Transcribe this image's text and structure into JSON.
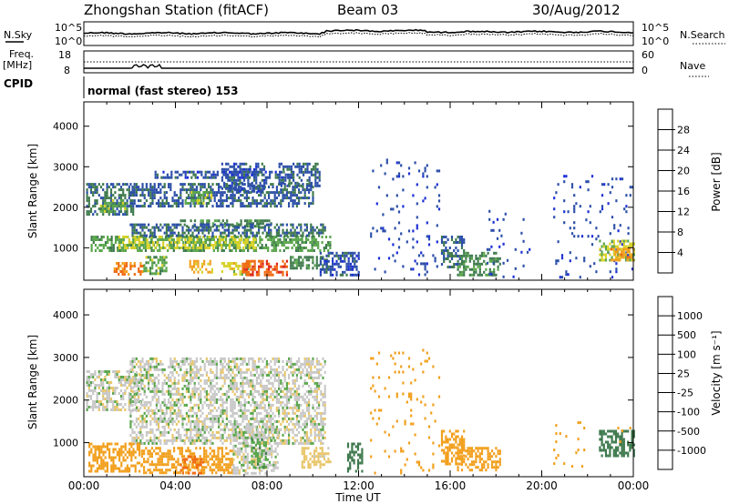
{
  "header": {
    "station": "Zhongshan Station (fitACF)",
    "beam": "Beam 03",
    "date": "30/Aug/2012"
  },
  "top_panels": {
    "nsky_label": "N.Sky",
    "nsky_ticks": [
      "10^5",
      "10^0"
    ],
    "nsearch_label": "N.Search",
    "freq_label_1": "Freq.",
    "freq_label_2": "[MHz]",
    "freq_ticks": [
      "18",
      "8"
    ],
    "nave_ticks": [
      "60",
      "0"
    ],
    "nave_label": "Nave",
    "cpid_label": "CPID",
    "cpid_value": "normal (fast stereo) 153"
  },
  "colors": {
    "power_scale": [
      "#1d2fd6",
      "#2c4fa8",
      "#3f7a4e",
      "#5aa64c",
      "#d8d22a",
      "#f2a01e",
      "#f06a12",
      "#e0241a"
    ],
    "velocity_scale": [
      "#e0241a",
      "#f06a12",
      "#f2a01e",
      "#e8c66a",
      "#c8c8c8",
      "#5aa64c",
      "#3f7a4e",
      "#2c4fa8",
      "#1d2fd6"
    ]
  },
  "chart_data": [
    {
      "type": "heatmap",
      "name": "power-panel",
      "x_axis": "time",
      "xlim": [
        0,
        24
      ],
      "xticks": [
        "00:00",
        "04:00",
        "08:00",
        "12:00",
        "16:00",
        "20:00",
        "00:00"
      ],
      "ylabel": "Slant Range [km]",
      "ylim": [
        200,
        4600
      ],
      "yticks": [
        1000,
        2000,
        3000,
        4000
      ],
      "colorbar_label": "Power [dB]",
      "colorbar_ticks": [
        4,
        8,
        12,
        16,
        20,
        24,
        28
      ],
      "bands": [
        {
          "t0": 0.1,
          "t1": 2.2,
          "r0": 1800,
          "r1": 2600,
          "v": 9
        },
        {
          "t0": 0.7,
          "t1": 1.9,
          "r0": 1900,
          "r1": 2200,
          "v": 15
        },
        {
          "t0": 0.3,
          "t1": 10.8,
          "r0": 900,
          "r1": 1300,
          "v": 13
        },
        {
          "t0": 1.5,
          "t1": 7.5,
          "r0": 1000,
          "r1": 1300,
          "v": 17
        },
        {
          "t0": 4.2,
          "t1": 8.2,
          "r0": 1500,
          "r1": 1700,
          "v": 11
        },
        {
          "t0": 2.0,
          "t1": 10.5,
          "r0": 1300,
          "r1": 1600,
          "v": 8
        },
        {
          "t0": 2.0,
          "t1": 10.0,
          "r0": 2000,
          "r1": 2600,
          "v": 7
        },
        {
          "t0": 3.0,
          "t1": 9.0,
          "r0": 2700,
          "r1": 2900,
          "v": 6
        },
        {
          "t0": 4.4,
          "t1": 5.6,
          "r0": 2100,
          "r1": 2400,
          "v": 14
        },
        {
          "t0": 6.0,
          "t1": 8.0,
          "r0": 2400,
          "r1": 3100,
          "v": 6
        },
        {
          "t0": 8.5,
          "t1": 10.3,
          "r0": 2500,
          "r1": 3100,
          "v": 7
        },
        {
          "t0": 1.3,
          "t1": 2.6,
          "r0": 380,
          "r1": 650,
          "v": 25
        },
        {
          "t0": 2.6,
          "t1": 3.6,
          "r0": 350,
          "r1": 800,
          "v": 14
        },
        {
          "t0": 4.6,
          "t1": 5.6,
          "r0": 380,
          "r1": 700,
          "v": 21
        },
        {
          "t0": 6.0,
          "t1": 7.4,
          "r0": 350,
          "r1": 650,
          "v": 18
        },
        {
          "t0": 6.9,
          "t1": 8.9,
          "r0": 330,
          "r1": 700,
          "v": 27
        },
        {
          "t0": 9.0,
          "t1": 10.6,
          "r0": 500,
          "r1": 800,
          "v": 11
        },
        {
          "t0": 10.3,
          "t1": 12.0,
          "r0": 300,
          "r1": 900,
          "v": 6
        },
        {
          "t0": 12.5,
          "t1": 15.5,
          "r0": 300,
          "r1": 3200,
          "v": 5
        },
        {
          "t0": 15.6,
          "t1": 16.6,
          "r0": 500,
          "r1": 1300,
          "v": 8
        },
        {
          "t0": 16.3,
          "t1": 18.2,
          "r0": 350,
          "r1": 900,
          "v": 11
        },
        {
          "t0": 17.5,
          "t1": 19.5,
          "r0": 300,
          "r1": 2000,
          "v": 5
        },
        {
          "t0": 20.5,
          "t1": 24.0,
          "r0": 300,
          "r1": 2800,
          "v": 5
        },
        {
          "t0": 22.5,
          "t1": 24.0,
          "r0": 700,
          "r1": 1200,
          "v": 17
        },
        {
          "t0": 23.0,
          "t1": 24.0,
          "r0": 700,
          "r1": 1000,
          "v": 23
        }
      ]
    },
    {
      "type": "heatmap",
      "name": "velocity-panel",
      "x_axis": "time",
      "xlim": [
        0,
        24
      ],
      "xticks": [
        "00:00",
        "04:00",
        "08:00",
        "12:00",
        "16:00",
        "20:00",
        "00:00"
      ],
      "xlabel": "Time UT",
      "ylabel": "Slant Range [km]",
      "ylim": [
        200,
        4600
      ],
      "yticks": [
        1000,
        2000,
        3000,
        4000
      ],
      "colorbar_label": "Velocity [m s⁻¹]",
      "colorbar_ticks": [
        "1000",
        "500",
        "100",
        "25",
        "-25",
        "-100",
        "-500",
        "-1000"
      ],
      "bands": [
        {
          "t0": 0.1,
          "t1": 2.5,
          "r0": 1800,
          "r1": 2700,
          "v": 0
        },
        {
          "t0": 2.0,
          "t1": 10.5,
          "r0": 1000,
          "r1": 3000,
          "v": 0
        },
        {
          "t0": 0.2,
          "t1": 2.5,
          "r0": 350,
          "r1": 1000,
          "v": -300
        },
        {
          "t0": 2.5,
          "t1": 6.5,
          "r0": 300,
          "r1": 900,
          "v": -200
        },
        {
          "t0": 4.2,
          "t1": 5.2,
          "r0": 300,
          "r1": 700,
          "v": -600
        },
        {
          "t0": 6.5,
          "t1": 8.5,
          "r0": 300,
          "r1": 1400,
          "v": 0
        },
        {
          "t0": 7.3,
          "t1": 8.0,
          "r0": 400,
          "r1": 1100,
          "v": 80
        },
        {
          "t0": 9.5,
          "t1": 10.8,
          "r0": 400,
          "r1": 900,
          "v": -60
        },
        {
          "t0": 11.5,
          "t1": 12.2,
          "r0": 300,
          "r1": 1000,
          "v": 200
        },
        {
          "t0": 12.5,
          "t1": 15.5,
          "r0": 300,
          "r1": 3200,
          "v": -300
        },
        {
          "t0": 15.6,
          "t1": 16.6,
          "r0": 500,
          "r1": 1300,
          "v": -200
        },
        {
          "t0": 16.3,
          "t1": 18.2,
          "r0": 350,
          "r1": 900,
          "v": -300
        },
        {
          "t0": 20.5,
          "t1": 22.0,
          "r0": 400,
          "r1": 1500,
          "v": -150
        },
        {
          "t0": 22.5,
          "t1": 24.0,
          "r0": 700,
          "r1": 1300,
          "v": 200
        },
        {
          "t0": 23.3,
          "t1": 24.0,
          "r0": 900,
          "r1": 1500,
          "v": -200
        }
      ]
    }
  ]
}
